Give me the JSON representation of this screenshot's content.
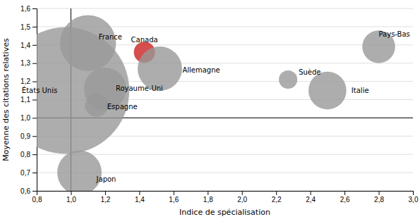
{
  "chart_data": {
    "type": "scatter",
    "xlabel": "Indice de spécialisation",
    "ylabel": "Moyenne des citations relatives",
    "labels": [
      "États Unis",
      "France",
      "Royaume-Uni",
      "Espagne",
      "Japon",
      "Canada",
      "Allemagne",
      "Suède",
      "Italie",
      "Pays-Bas"
    ],
    "x": [
      0.97,
      1.1,
      1.2,
      1.15,
      1.05,
      1.43,
      1.52,
      2.27,
      2.5,
      2.8
    ],
    "values": [
      1.15,
      1.41,
      1.16,
      1.07,
      0.7,
      1.36,
      1.27,
      1.21,
      1.15,
      1.39
    ],
    "sizes": [
      18000,
      3500,
      2000,
      600,
      2200,
      500,
      2200,
      380,
      1600,
      1200
    ],
    "colors": [
      "#999999",
      "#999999",
      "#999999",
      "#999999",
      "#999999",
      "#cc2222",
      "#999999",
      "#999999",
      "#999999",
      "#999999"
    ],
    "xlim": [
      0.8,
      3.0
    ],
    "ylim": [
      0.6,
      1.6
    ],
    "xticks": [
      {
        "value": 0.8,
        "label": "0,8"
      },
      {
        "value": 1.0,
        "label": "1,0"
      },
      {
        "value": 1.2,
        "label": "1,2"
      },
      {
        "value": 1.4,
        "label": "1,4"
      },
      {
        "value": 1.6,
        "label": "1,6"
      },
      {
        "value": 1.8,
        "label": "1,8"
      },
      {
        "value": 2.0,
        "label": "2,0"
      },
      {
        "value": 2.2,
        "label": "2,2"
      },
      {
        "value": 2.4,
        "label": "2,4"
      },
      {
        "value": 2.6,
        "label": "2,6"
      },
      {
        "value": 2.8,
        "label": "2,8"
      },
      {
        "value": 3.0,
        "label": "3,0"
      }
    ],
    "yticks": [
      {
        "value": 0.6,
        "label": "0,6"
      },
      {
        "value": 0.7,
        "label": "0,7"
      },
      {
        "value": 0.8,
        "label": "0,8"
      },
      {
        "value": 0.9,
        "label": "0,9"
      },
      {
        "value": 1.0,
        "label": "1,0"
      },
      {
        "value": 1.1,
        "label": "1,1"
      },
      {
        "value": 1.2,
        "label": "1,2"
      },
      {
        "value": 1.3,
        "label": "1,3"
      },
      {
        "value": 1.4,
        "label": "1,4"
      },
      {
        "value": 1.5,
        "label": "1,5"
      },
      {
        "value": 1.6,
        "label": "1,6"
      }
    ],
    "vline_x": 1.0,
    "hline_y": 1.0,
    "grid": true
  }
}
